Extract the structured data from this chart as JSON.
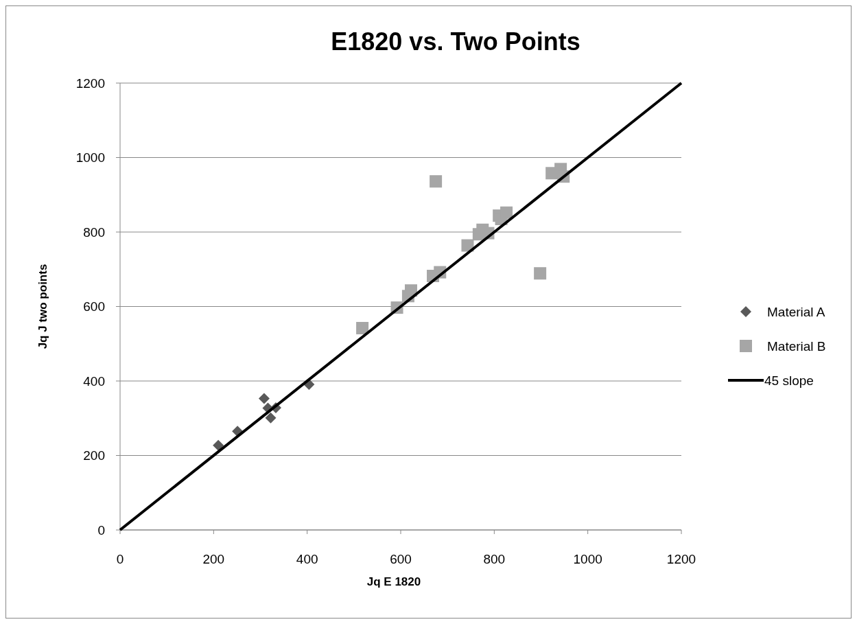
{
  "chart_data": {
    "type": "scatter",
    "title": "E1820 vs. Two Points",
    "xlabel": "Jq E 1820",
    "ylabel": "Jq J two points",
    "xlim": [
      0,
      1200
    ],
    "xticks": [
      0,
      200,
      400,
      600,
      800,
      1000,
      1200
    ],
    "ylim": [
      0,
      1200
    ],
    "yticks": [
      0,
      200,
      400,
      600,
      800,
      1000,
      1200
    ],
    "grid": "y",
    "legend": "right",
    "series": [
      {
        "name": "Material A",
        "color": "#595959",
        "marker": "diamond",
        "x": [
          210,
          251,
          308,
          316,
          333,
          322,
          404
        ],
        "values": [
          227,
          265,
          353,
          327,
          328,
          301,
          391
        ]
      },
      {
        "name": "Material B",
        "color": "#a6a6a6",
        "marker": "square",
        "x": [
          518,
          592,
          616,
          622,
          669,
          684,
          675,
          743,
          767,
          775,
          787,
          810,
          815,
          826,
          898,
          923,
          942,
          948
        ],
        "values": [
          542,
          597,
          628,
          643,
          682,
          692,
          936,
          764,
          794,
          806,
          797,
          844,
          835,
          852,
          689,
          958,
          969,
          949
        ]
      },
      {
        "name": "45 slope",
        "type": "line",
        "color": "#000000",
        "marker": "none",
        "line_style": "solid",
        "x": [
          0,
          1200
        ],
        "values": [
          0,
          1200
        ]
      }
    ]
  }
}
